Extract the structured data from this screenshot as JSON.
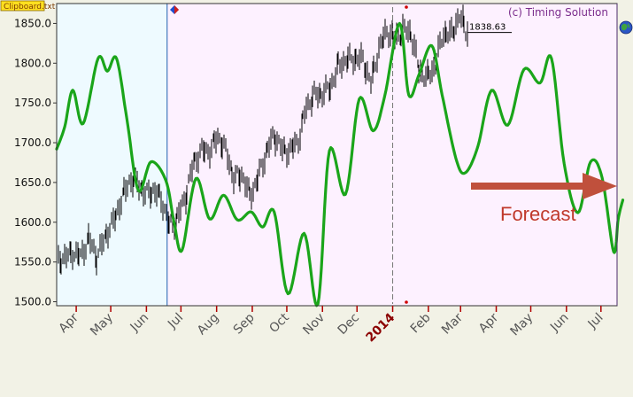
{
  "source_label": "Clipboard.txt",
  "credit": "(c) Timing Solution",
  "last_price_label": "1838.63",
  "forecast_label": "Forecast",
  "colors": {
    "price_bars": "#000000",
    "forecast_line": "#1aa51a",
    "past_region": "#eefaff",
    "main_region": "#fdf1ff",
    "arrow": "#c0503c",
    "axis_tick": "#b00000"
  },
  "icons": [
    "diamond-marker-icon",
    "globe-icon"
  ],
  "chart_data": {
    "type": "line",
    "title": "",
    "xlabel": "",
    "ylabel": "",
    "ylim": [
      1495,
      1875
    ],
    "y_ticks": [
      1500.0,
      1550.0,
      1600.0,
      1650.0,
      1700.0,
      1750.0,
      1800.0,
      1850.0
    ],
    "x_range": [
      "2013-03-15",
      "2014-07-15"
    ],
    "x_ticks": [
      {
        "label": "Apr",
        "date": "2013-04-01"
      },
      {
        "label": "May",
        "date": "2013-05-01"
      },
      {
        "label": "Jun",
        "date": "2013-06-01"
      },
      {
        "label": "Jul",
        "date": "2013-07-01"
      },
      {
        "label": "Aug",
        "date": "2013-08-01"
      },
      {
        "label": "Sep",
        "date": "2013-09-01"
      },
      {
        "label": "Oct",
        "date": "2013-10-01"
      },
      {
        "label": "Nov",
        "date": "2013-11-01"
      },
      {
        "label": "Dec",
        "date": "2013-12-01"
      },
      {
        "label": "2014",
        "date": "2014-01-01",
        "highlight": true
      },
      {
        "label": "Feb",
        "date": "2014-02-01"
      },
      {
        "label": "Mar",
        "date": "2014-03-01"
      },
      {
        "label": "Apr",
        "date": "2014-04-01"
      },
      {
        "label": "May",
        "date": "2014-05-01"
      },
      {
        "label": "Jun",
        "date": "2014-06-01"
      },
      {
        "label": "Jul",
        "date": "2014-07-01"
      }
    ],
    "region_boundary_date": "2013-06-19",
    "dashed_marker_date": "2014-01-01",
    "series": [
      {
        "kind": "price-bars",
        "points": [
          {
            "x": "2013-03-15",
            "y": 1550
          },
          {
            "x": "2013-03-22",
            "y": 1556
          },
          {
            "x": "2013-03-29",
            "y": 1562
          },
          {
            "x": "2013-04-05",
            "y": 1557
          },
          {
            "x": "2013-04-12",
            "y": 1580
          },
          {
            "x": "2013-04-19",
            "y": 1555
          },
          {
            "x": "2013-04-26",
            "y": 1582
          },
          {
            "x": "2013-05-03",
            "y": 1600
          },
          {
            "x": "2013-05-10",
            "y": 1627
          },
          {
            "x": "2013-05-17",
            "y": 1652
          },
          {
            "x": "2013-05-24",
            "y": 1650
          },
          {
            "x": "2013-05-31",
            "y": 1635
          },
          {
            "x": "2013-06-07",
            "y": 1640
          },
          {
            "x": "2013-06-14",
            "y": 1630
          },
          {
            "x": "2013-06-21",
            "y": 1595
          },
          {
            "x": "2013-06-28",
            "y": 1606
          },
          {
            "x": "2013-07-05",
            "y": 1632
          },
          {
            "x": "2013-07-12",
            "y": 1675
          },
          {
            "x": "2013-07-19",
            "y": 1690
          },
          {
            "x": "2013-07-26",
            "y": 1690
          },
          {
            "x": "2013-08-02",
            "y": 1708
          },
          {
            "x": "2013-08-09",
            "y": 1690
          },
          {
            "x": "2013-08-16",
            "y": 1655
          },
          {
            "x": "2013-08-23",
            "y": 1660
          },
          {
            "x": "2013-08-30",
            "y": 1633
          },
          {
            "x": "2013-09-06",
            "y": 1655
          },
          {
            "x": "2013-09-13",
            "y": 1688
          },
          {
            "x": "2013-09-20",
            "y": 1710
          },
          {
            "x": "2013-09-27",
            "y": 1691
          },
          {
            "x": "2013-10-04",
            "y": 1690
          },
          {
            "x": "2013-10-11",
            "y": 1703
          },
          {
            "x": "2013-10-18",
            "y": 1745
          },
          {
            "x": "2013-10-25",
            "y": 1760
          },
          {
            "x": "2013-11-01",
            "y": 1762
          },
          {
            "x": "2013-11-08",
            "y": 1770
          },
          {
            "x": "2013-11-15",
            "y": 1798
          },
          {
            "x": "2013-11-22",
            "y": 1804
          },
          {
            "x": "2013-11-29",
            "y": 1806
          },
          {
            "x": "2013-12-06",
            "y": 1805
          },
          {
            "x": "2013-12-13",
            "y": 1775
          },
          {
            "x": "2013-12-20",
            "y": 1818
          },
          {
            "x": "2013-12-27",
            "y": 1841
          },
          {
            "x": "2014-01-03",
            "y": 1831
          },
          {
            "x": "2014-01-10",
            "y": 1842
          },
          {
            "x": "2014-01-17",
            "y": 1838
          },
          {
            "x": "2014-01-24",
            "y": 1790
          },
          {
            "x": "2014-01-31",
            "y": 1782
          },
          {
            "x": "2014-02-07",
            "y": 1797
          },
          {
            "x": "2014-02-14",
            "y": 1838
          },
          {
            "x": "2014-02-21",
            "y": 1836
          },
          {
            "x": "2014-02-28",
            "y": 1859
          },
          {
            "x": "2014-03-07",
            "y": 1838.63
          }
        ]
      },
      {
        "name": "",
        "kind": "forecast-line",
        "points": [
          {
            "x": "2013-03-15",
            "y": 1692
          },
          {
            "x": "2013-03-22",
            "y": 1720
          },
          {
            "x": "2013-03-29",
            "y": 1766
          },
          {
            "x": "2013-04-07",
            "y": 1724
          },
          {
            "x": "2013-04-20",
            "y": 1806
          },
          {
            "x": "2013-04-28",
            "y": 1790
          },
          {
            "x": "2013-05-06",
            "y": 1806
          },
          {
            "x": "2013-05-15",
            "y": 1730
          },
          {
            "x": "2013-05-25",
            "y": 1640
          },
          {
            "x": "2013-06-05",
            "y": 1676
          },
          {
            "x": "2013-06-18",
            "y": 1652
          },
          {
            "x": "2013-06-25",
            "y": 1600
          },
          {
            "x": "2013-07-02",
            "y": 1565
          },
          {
            "x": "2013-07-14",
            "y": 1655
          },
          {
            "x": "2013-07-26",
            "y": 1604
          },
          {
            "x": "2013-08-07",
            "y": 1634
          },
          {
            "x": "2013-08-19",
            "y": 1603
          },
          {
            "x": "2013-08-31",
            "y": 1613
          },
          {
            "x": "2013-09-10",
            "y": 1594
          },
          {
            "x": "2013-09-20",
            "y": 1613
          },
          {
            "x": "2013-10-02",
            "y": 1510
          },
          {
            "x": "2013-10-16",
            "y": 1586
          },
          {
            "x": "2013-10-28",
            "y": 1497
          },
          {
            "x": "2013-11-07",
            "y": 1690
          },
          {
            "x": "2013-11-21",
            "y": 1635
          },
          {
            "x": "2013-12-03",
            "y": 1755
          },
          {
            "x": "2013-12-15",
            "y": 1715
          },
          {
            "x": "2013-12-25",
            "y": 1758
          },
          {
            "x": "2014-01-07",
            "y": 1850
          },
          {
            "x": "2014-01-15",
            "y": 1760
          },
          {
            "x": "2014-01-24",
            "y": 1786
          },
          {
            "x": "2014-02-04",
            "y": 1822
          },
          {
            "x": "2014-02-13",
            "y": 1760
          },
          {
            "x": "2014-02-25",
            "y": 1680
          },
          {
            "x": "2014-03-05",
            "y": 1662
          },
          {
            "x": "2014-03-16",
            "y": 1695
          },
          {
            "x": "2014-03-28",
            "y": 1766
          },
          {
            "x": "2014-04-11",
            "y": 1722
          },
          {
            "x": "2014-04-25",
            "y": 1792
          },
          {
            "x": "2014-05-09",
            "y": 1775
          },
          {
            "x": "2014-05-19",
            "y": 1806
          },
          {
            "x": "2014-05-30",
            "y": 1674
          },
          {
            "x": "2014-06-11",
            "y": 1612
          },
          {
            "x": "2014-06-22",
            "y": 1676
          },
          {
            "x": "2014-07-02",
            "y": 1656
          },
          {
            "x": "2014-07-12",
            "y": 1563
          },
          {
            "x": "2014-07-16",
            "y": 1604
          },
          {
            "x": "2014-07-20",
            "y": 1628
          }
        ]
      }
    ]
  }
}
